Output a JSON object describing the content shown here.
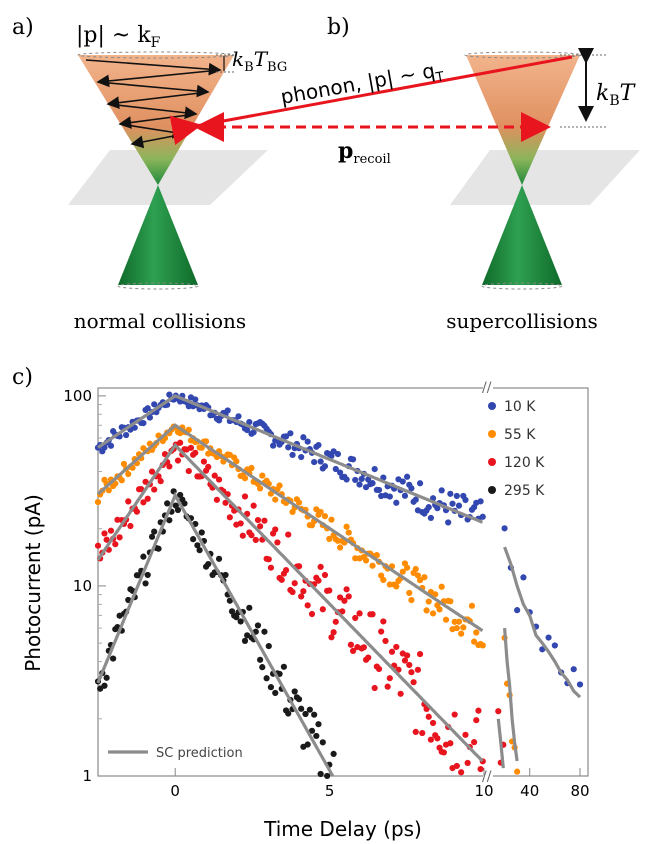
{
  "panels": {
    "a": {
      "letter": "a)",
      "fermi_label": "|p| ~ k",
      "fermi_sub": "F",
      "tbg_label": "k",
      "tbg_sub": "B",
      "tbg_T": "T",
      "tbg_T_sub": "BG",
      "caption": "normal collisions"
    },
    "b": {
      "letter": "b)",
      "phonon_label": "phonon, |p| ~ q",
      "phonon_sub": "T",
      "kbt_label": "k",
      "kbt_sub": "B",
      "kbt_T": "T",
      "recoil_label": "p",
      "recoil_sub": "recoil",
      "caption": "supercollisions"
    },
    "c": {
      "letter": "c)"
    }
  },
  "colors": {
    "cone_upper_top": "#f0a878",
    "cone_lower": "#1e8a3c",
    "arrow_red": "#e8141e",
    "series_10K": "#3347b0",
    "series_55K": "#ff8c00",
    "series_120K": "#e8141e",
    "series_295K": "#1a1a1a",
    "prediction": "#8c8c8c"
  },
  "chart_data": {
    "type": "scatter",
    "xlabel": "Time Delay (ps)",
    "ylabel": "Photocurrent (pA)",
    "yscale": "log",
    "ylim": [
      1,
      110
    ],
    "y_ticks": [
      "1",
      "10",
      "100"
    ],
    "x_ticks_linear": [
      "0",
      "5",
      "10"
    ],
    "x_ticks_broken": [
      "40",
      "80"
    ],
    "xlim_linear_ps": [
      -2.5,
      10
    ],
    "xlim_broken_ps": [
      10,
      80
    ],
    "axis_break": true,
    "grid": false,
    "legend_position": "top-right",
    "series": [
      {
        "name": "10 K",
        "peak": 100,
        "rise_tau": 4.0,
        "fall_tau": 6.5,
        "late_points": [
          [
            20,
            16
          ],
          [
            25,
            13
          ],
          [
            30,
            10
          ],
          [
            35,
            8
          ],
          [
            40,
            7
          ],
          [
            45,
            5.5
          ],
          [
            50,
            5
          ],
          [
            55,
            4.5
          ],
          [
            60,
            4
          ],
          [
            65,
            3.5
          ],
          [
            70,
            3.2
          ],
          [
            75,
            2.8
          ],
          [
            80,
            2.6
          ]
        ]
      },
      {
        "name": "55 K",
        "peak": 70,
        "rise_tau": 3.0,
        "fall_tau": 4.0,
        "late_points": [
          [
            20,
            6
          ],
          [
            22,
            4
          ],
          [
            24,
            3
          ],
          [
            26,
            2
          ],
          [
            28,
            1.5
          ],
          [
            30,
            1.2
          ]
        ]
      },
      {
        "name": "120 K",
        "peak": 55,
        "rise_tau": 1.8,
        "fall_tau": 2.6,
        "late_points": [
          [
            15,
            2
          ],
          [
            17,
            1.5
          ],
          [
            19,
            1.1
          ]
        ]
      },
      {
        "name": "295 K",
        "peak": 30,
        "rise_tau": 1.1,
        "fall_tau": 1.5,
        "late_points": []
      }
    ],
    "legend_prediction": "SC prediction"
  }
}
